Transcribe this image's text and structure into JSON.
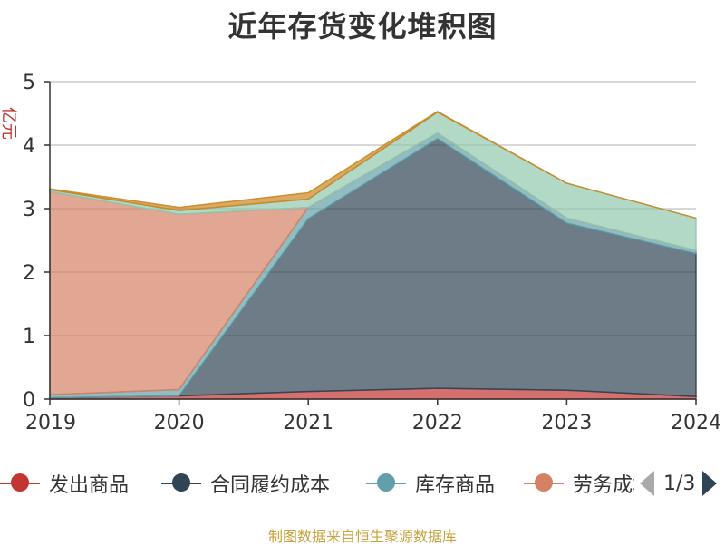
{
  "chart_data": {
    "type": "area",
    "stacked": true,
    "title": "近年存货变化堆积图",
    "ylabel": "亿元",
    "x": [
      "2019",
      "2020",
      "2021",
      "2022",
      "2023",
      "2024"
    ],
    "ylim": [
      0,
      5
    ],
    "yticks": [
      "0",
      "1",
      "2",
      "3",
      "4",
      "5"
    ],
    "grid": true,
    "legend_position": "bottom",
    "series": [
      {
        "name": "发出商品",
        "color": "#c23531",
        "values": [
          0.02,
          0.05,
          0.12,
          0.17,
          0.14,
          0.04
        ]
      },
      {
        "name": "合同履约成本",
        "color": "#2f4554",
        "values": [
          0.0,
          0.0,
          2.72,
          3.93,
          2.63,
          2.25
        ]
      },
      {
        "name": "库存商品",
        "color": "#61a0a8",
        "values": [
          0.05,
          0.1,
          0.18,
          0.09,
          0.08,
          0.05
        ]
      },
      {
        "name": "劳务成本",
        "color": "#d48265",
        "values": [
          3.2,
          2.76,
          0.0,
          0.0,
          0.0,
          0.0
        ]
      },
      {
        "name": "",
        "color": "#91c7ae",
        "values": [
          0.03,
          0.06,
          0.13,
          0.33,
          0.55,
          0.51
        ]
      },
      {
        "name": "",
        "color": "#ca8622",
        "values": [
          0.01,
          0.05,
          0.1,
          0.01,
          0.0,
          0.0
        ]
      }
    ]
  },
  "legend": {
    "items": [
      {
        "name": "发出商品",
        "color": "#c23531"
      },
      {
        "name": "合同履约成本",
        "color": "#2f4554"
      },
      {
        "name": "库存商品",
        "color": "#61a0a8"
      },
      {
        "name": "劳务成本",
        "color": "#d48265"
      }
    ],
    "page": "1/3"
  },
  "source": "制图数据来自恒生聚源数据库"
}
